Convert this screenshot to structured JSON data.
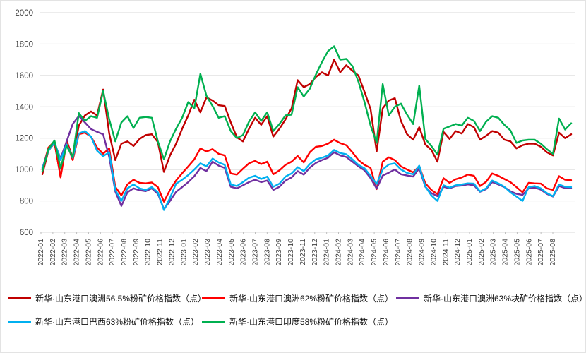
{
  "chart_data": {
    "type": "line",
    "title": "",
    "xlabel": "",
    "ylabel": "",
    "grid": true,
    "legend_position": "bottom",
    "y_axis": {
      "min": 600,
      "max": 2000,
      "step": 200,
      "tick_labels": [
        "600",
        "800",
        "1000",
        "1200",
        "1400",
        "1600",
        "1800",
        "2000"
      ]
    },
    "x_labels": [
      "2022-01",
      "2022-02",
      "2022-03",
      "2022-04",
      "2022-05",
      "2022-06",
      "2022-07",
      "2022-08",
      "2022-09",
      "2022-10",
      "2022-11",
      "2022-12",
      "2023-01",
      "2023-02",
      "2023-03",
      "2023-04",
      "2023-05",
      "2023-06",
      "2023-07",
      "2023-08",
      "2023-09",
      "2023-10",
      "2023-11",
      "2023-12",
      "2024-01",
      "2024-02",
      "2024-03",
      "2024-04",
      "2024-05",
      "2024-06",
      "2024-07",
      "2024-08",
      "2024-09",
      "2024-10",
      "2024-11",
      "2024-12",
      "2025-01",
      "2025-02",
      "2025-03",
      "2025-04",
      "2025-05",
      "2025-06",
      "2025-07",
      "2025-08"
    ],
    "points_per_month": 2,
    "series": [
      {
        "name": "新华·山东港口澳洲56.5%粉矿价格指数（点）",
        "color": "#C00000",
        "values": [
          970,
          1120,
          1170,
          955,
          1185,
          1075,
          1280,
          1345,
          1370,
          1345,
          1510,
          1230,
          1060,
          1165,
          1180,
          1150,
          1195,
          1220,
          1225,
          1175,
          985,
          1090,
          1165,
          1260,
          1345,
          1445,
          1365,
          1460,
          1440,
          1410,
          1405,
          1300,
          1205,
          1180,
          1260,
          1330,
          1285,
          1340,
          1210,
          1260,
          1320,
          1390,
          1570,
          1525,
          1545,
          1590,
          1620,
          1600,
          1700,
          1620,
          1665,
          1630,
          1600,
          1495,
          1385,
          1115,
          1390,
          1440,
          1455,
          1310,
          1225,
          1190,
          1270,
          1160,
          1125,
          1050,
          1240,
          1195,
          1245,
          1230,
          1290,
          1270,
          1190,
          1215,
          1245,
          1235,
          1190,
          1180,
          1135,
          1155,
          1165,
          1165,
          1145,
          1110,
          1090,
          1235,
          1200,
          1225
        ]
      },
      {
        "name": "新华·山东港口澳洲62%粉矿价格指数（点）",
        "color": "#FF0000",
        "values": [
          1000,
          1140,
          1180,
          950,
          1175,
          1060,
          1225,
          1235,
          1210,
          1140,
          1100,
          1135,
          890,
          835,
          905,
          935,
          915,
          912,
          918,
          888,
          795,
          870,
          930,
          977,
          1020,
          1065,
          1135,
          1115,
          1130,
          1100,
          1090,
          975,
          968,
          1005,
          1040,
          1055,
          1035,
          1050,
          970,
          995,
          1030,
          1050,
          1086,
          1045,
          1110,
          1145,
          1150,
          1165,
          1190,
          1168,
          1155,
          1110,
          1060,
          1030,
          1010,
          875,
          1050,
          1078,
          1060,
          1020,
          1000,
          982,
          1022,
          913,
          870,
          843,
          945,
          915,
          938,
          950,
          968,
          960,
          895,
          922,
          975,
          960,
          940,
          920,
          888,
          855,
          915,
          912,
          910,
          880,
          870,
          958,
          935,
          932
        ]
      },
      {
        "name": "新华·山东港口澳洲63%块矿价格指数（点）",
        "color": "#7030A0",
        "values": [
          1010,
          1125,
          1170,
          1070,
          1180,
          1290,
          1342,
          1300,
          1258,
          1240,
          1225,
          1080,
          860,
          768,
          855,
          880,
          868,
          862,
          880,
          845,
          748,
          800,
          858,
          888,
          920,
          958,
          1010,
          990,
          1050,
          1025,
          1010,
          890,
          880,
          900,
          920,
          935,
          920,
          930,
          870,
          890,
          930,
          950,
          990,
          968,
          1012,
          1042,
          1060,
          1075,
          1110,
          1090,
          1080,
          1050,
          1020,
          995,
          945,
          878,
          962,
          980,
          1000,
          970,
          962,
          955,
          1008,
          890,
          850,
          830,
          890,
          880,
          895,
          898,
          905,
          900,
          858,
          875,
          920,
          905,
          888,
          862,
          845,
          838,
          880,
          885,
          872,
          845,
          828,
          895,
          882,
          880
        ]
      },
      {
        "name": "新华·山东港口巴西63%粉矿价格指数（点）",
        "color": "#00B0F0",
        "values": [
          1005,
          1120,
          1175,
          1060,
          1160,
          1075,
          1230,
          1245,
          1210,
          1120,
          1085,
          1110,
          870,
          800,
          880,
          905,
          880,
          870,
          888,
          855,
          742,
          820,
          910,
          935,
          965,
          1000,
          1040,
          1020,
          1070,
          1045,
          1030,
          905,
          895,
          920,
          948,
          960,
          940,
          955,
          890,
          910,
          955,
          975,
          1015,
          990,
          1035,
          1065,
          1075,
          1090,
          1125,
          1105,
          1097,
          1065,
          1030,
          1008,
          960,
          908,
          1000,
          1032,
          1040,
          1000,
          978,
          970,
          1025,
          893,
          835,
          800,
          900,
          885,
          900,
          905,
          912,
          910,
          860,
          880,
          930,
          912,
          890,
          855,
          828,
          800,
          888,
          895,
          880,
          850,
          830,
          905,
          890,
          888
        ]
      },
      {
        "name": "新华·山东港口印度58%粉矿价格指数（点）",
        "color": "#00B050",
        "values": [
          990,
          1130,
          1185,
          1010,
          1150,
          1080,
          1360,
          1310,
          1340,
          1330,
          1500,
          1320,
          1180,
          1300,
          1340,
          1265,
          1330,
          1335,
          1330,
          1180,
          1065,
          1180,
          1260,
          1330,
          1430,
          1390,
          1610,
          1470,
          1405,
          1330,
          1340,
          1245,
          1200,
          1220,
          1305,
          1365,
          1310,
          1365,
          1245,
          1290,
          1345,
          1350,
          1525,
          1465,
          1515,
          1605,
          1685,
          1755,
          1786,
          1700,
          1705,
          1660,
          1560,
          1430,
          1280,
          1170,
          1545,
          1345,
          1400,
          1420,
          1350,
          1290,
          1535,
          1195,
          1150,
          1095,
          1260,
          1275,
          1290,
          1280,
          1330,
          1310,
          1245,
          1305,
          1340,
          1330,
          1285,
          1250,
          1170,
          1185,
          1190,
          1190,
          1165,
          1130,
          1100,
          1325,
          1255,
          1295
        ]
      }
    ],
    "style": {
      "grid_color": "#D9D9D9",
      "tick_color": "#BFBFBF",
      "axis_label_color": "#404040",
      "line_width": 2.4
    }
  }
}
